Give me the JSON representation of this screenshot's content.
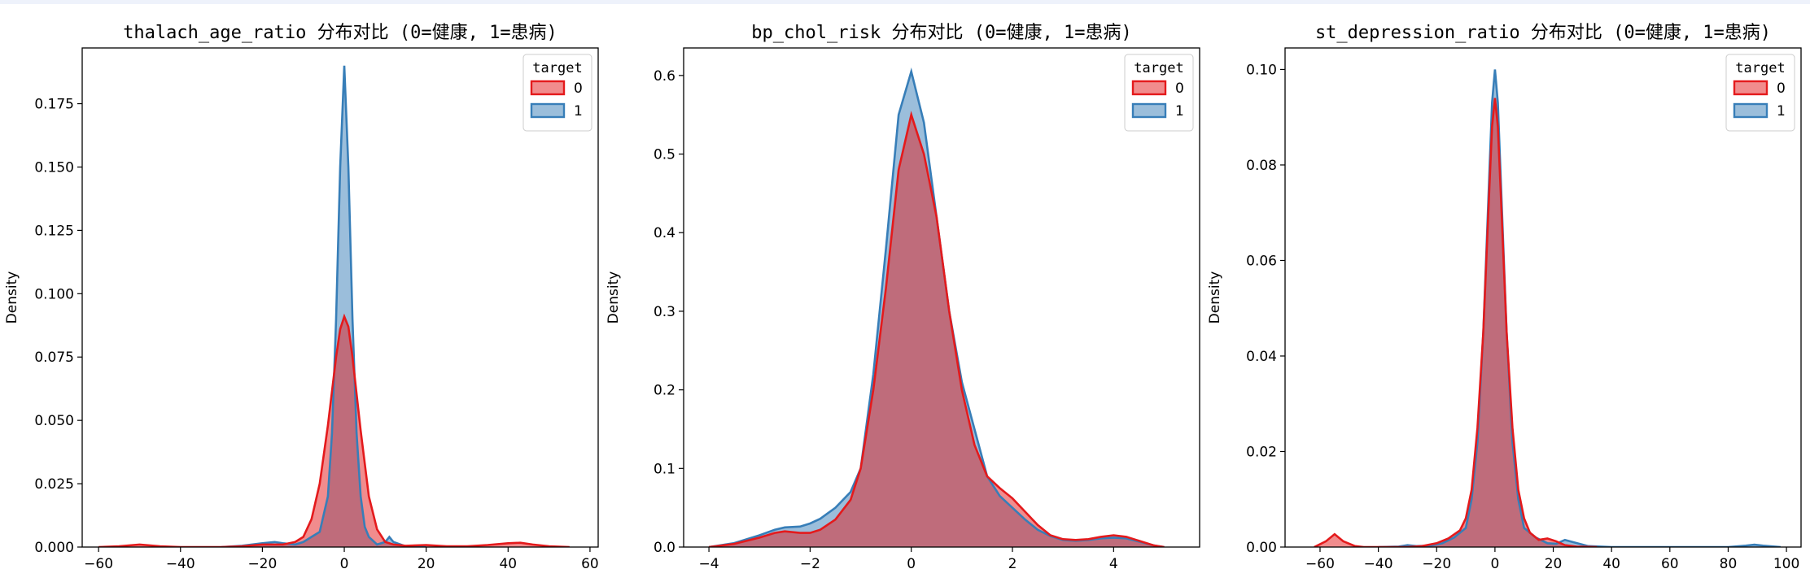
{
  "colors": {
    "class0": "#e41a1c",
    "class1": "#377eb8"
  },
  "chart_data": [
    {
      "type": "area",
      "title": "thalach_age_ratio 分布对比 (0=健康, 1=患病)",
      "xlabel": "",
      "ylabel": "Density",
      "xlim": [
        -64,
        62
      ],
      "ylim": [
        0,
        0.197
      ],
      "xticks": [
        -60,
        -40,
        -20,
        0,
        20,
        40,
        60
      ],
      "xtick_labels": [
        "−60",
        "−40",
        "−20",
        "0",
        "20",
        "40",
        "60"
      ],
      "yticks": [
        0,
        0.025,
        0.05,
        0.075,
        0.1,
        0.125,
        0.15,
        0.175
      ],
      "ytick_labels": [
        "0.000",
        "0.025",
        "0.050",
        "0.075",
        "0.100",
        "0.125",
        "0.150",
        "0.175"
      ],
      "grid": false,
      "legend": {
        "title": "target",
        "position": "top-right",
        "entries": [
          "0",
          "1"
        ]
      },
      "series": [
        {
          "name": "0",
          "color": "#e41a1c",
          "x": [
            -60,
            -55,
            -50,
            -45,
            -40,
            -30,
            -25,
            -20,
            -15,
            -12,
            -10,
            -8,
            -6,
            -4,
            -2,
            -1,
            0,
            1,
            2,
            4,
            6,
            8,
            10,
            12,
            15,
            20,
            25,
            30,
            35,
            40,
            43,
            46,
            50,
            55
          ],
          "y": [
            0,
            0.0003,
            0.001,
            0.0003,
            0,
            0,
            0.0003,
            0.001,
            0.001,
            0.002,
            0.004,
            0.011,
            0.025,
            0.048,
            0.075,
            0.086,
            0.091,
            0.087,
            0.075,
            0.046,
            0.02,
            0.007,
            0.002,
            0.001,
            0.0005,
            0.0008,
            0.0003,
            0.0003,
            0.0008,
            0.0015,
            0.0017,
            0.001,
            0.0003,
            0
          ]
        },
        {
          "name": "1",
          "color": "#377eb8",
          "x": [
            -30,
            -25,
            -20,
            -17,
            -15,
            -12,
            -10,
            -8,
            -6,
            -4,
            -3,
            -2,
            -1,
            0,
            1,
            2,
            3,
            4,
            5,
            6,
            8,
            10,
            11,
            12,
            15,
            20
          ],
          "y": [
            0,
            0.0005,
            0.0015,
            0.002,
            0.0015,
            0.001,
            0.002,
            0.004,
            0.006,
            0.02,
            0.045,
            0.09,
            0.15,
            0.19,
            0.15,
            0.09,
            0.045,
            0.02,
            0.008,
            0.004,
            0.001,
            0.002,
            0.004,
            0.002,
            0.0003,
            0
          ]
        }
      ]
    },
    {
      "type": "area",
      "title": "bp_chol_risk 分布对比 (0=健康, 1=患病)",
      "xlabel": "",
      "ylabel": "Density",
      "xlim": [
        -4.5,
        5.7
      ],
      "ylim": [
        0,
        0.635
      ],
      "xticks": [
        -4,
        -2,
        0,
        2,
        4
      ],
      "xtick_labels": [
        "−4",
        "−2",
        "0",
        "2",
        "4"
      ],
      "yticks": [
        0,
        0.1,
        0.2,
        0.3,
        0.4,
        0.5,
        0.6
      ],
      "ytick_labels": [
        "0.0",
        "0.1",
        "0.2",
        "0.3",
        "0.4",
        "0.5",
        "0.6"
      ],
      "grid": false,
      "legend": {
        "title": "target",
        "position": "top-right",
        "entries": [
          "0",
          "1"
        ]
      },
      "series": [
        {
          "name": "0",
          "color": "#e41a1c",
          "x": [
            -4,
            -3.5,
            -3,
            -2.7,
            -2.5,
            -2.2,
            -2,
            -1.8,
            -1.5,
            -1.2,
            -1,
            -0.75,
            -0.5,
            -0.25,
            0,
            0.25,
            0.5,
            0.75,
            1,
            1.25,
            1.5,
            1.75,
            2,
            2.25,
            2.5,
            2.75,
            3,
            3.25,
            3.5,
            3.75,
            4,
            4.25,
            4.5,
            4.8,
            5
          ],
          "y": [
            0,
            0.004,
            0.012,
            0.018,
            0.02,
            0.018,
            0.018,
            0.022,
            0.035,
            0.06,
            0.1,
            0.2,
            0.33,
            0.48,
            0.55,
            0.5,
            0.42,
            0.3,
            0.2,
            0.13,
            0.09,
            0.075,
            0.062,
            0.045,
            0.028,
            0.015,
            0.01,
            0.009,
            0.01,
            0.013,
            0.015,
            0.013,
            0.008,
            0.002,
            0
          ]
        },
        {
          "name": "1",
          "color": "#377eb8",
          "x": [
            -4,
            -3.5,
            -3,
            -2.7,
            -2.5,
            -2.2,
            -2,
            -1.8,
            -1.5,
            -1.2,
            -1,
            -0.75,
            -0.5,
            -0.25,
            0,
            0.25,
            0.5,
            0.75,
            1,
            1.25,
            1.5,
            1.75,
            2,
            2.25,
            2.5,
            2.75,
            3,
            3.25,
            3.5,
            3.75,
            4,
            4.25,
            4.5,
            4.8,
            5
          ],
          "y": [
            0,
            0.005,
            0.015,
            0.022,
            0.025,
            0.026,
            0.03,
            0.036,
            0.05,
            0.07,
            0.1,
            0.22,
            0.38,
            0.55,
            0.605,
            0.54,
            0.42,
            0.3,
            0.21,
            0.15,
            0.09,
            0.065,
            0.05,
            0.035,
            0.022,
            0.014,
            0.009,
            0.008,
            0.009,
            0.011,
            0.012,
            0.011,
            0.007,
            0.002,
            0
          ]
        }
      ]
    },
    {
      "type": "area",
      "title": "st_depression_ratio 分布对比 (0=健康, 1=患病)",
      "xlabel": "",
      "ylabel": "Density",
      "xlim": [
        -72,
        105
      ],
      "ylim": [
        0,
        0.1045
      ],
      "xticks": [
        -60,
        -40,
        -20,
        0,
        20,
        40,
        60,
        80,
        100
      ],
      "xtick_labels": [
        "−60",
        "−40",
        "−20",
        "0",
        "20",
        "40",
        "60",
        "80",
        "100"
      ],
      "yticks": [
        0,
        0.02,
        0.04,
        0.06,
        0.08,
        0.1
      ],
      "ytick_labels": [
        "0.00",
        "0.02",
        "0.04",
        "0.06",
        "0.08",
        "0.10"
      ],
      "grid": false,
      "legend": {
        "title": "target",
        "position": "top-right",
        "entries": [
          "0",
          "1"
        ]
      },
      "series": [
        {
          "name": "0",
          "color": "#e41a1c",
          "x": [
            -62,
            -58,
            -55,
            -52,
            -48,
            -45,
            -40,
            -30,
            -25,
            -20,
            -16,
            -12,
            -10,
            -8,
            -6,
            -4,
            -2,
            -1,
            0,
            1,
            2,
            4,
            6,
            8,
            10,
            12,
            15,
            18,
            21,
            24,
            28,
            35
          ],
          "y": [
            0,
            0.0012,
            0.0027,
            0.0012,
            0.0002,
            0,
            0,
            0,
            0.0002,
            0.0008,
            0.0018,
            0.0035,
            0.006,
            0.012,
            0.025,
            0.045,
            0.074,
            0.088,
            0.094,
            0.088,
            0.074,
            0.045,
            0.025,
            0.012,
            0.006,
            0.003,
            0.0015,
            0.0018,
            0.0012,
            0.0004,
            0.0001,
            0
          ]
        },
        {
          "name": "1",
          "color": "#377eb8",
          "x": [
            -40,
            -33,
            -30,
            -27,
            -22,
            -18,
            -14,
            -10,
            -8,
            -6,
            -4,
            -2,
            -1,
            0,
            1,
            2,
            4,
            6,
            8,
            10,
            14,
            18,
            21,
            24,
            27,
            32,
            40,
            80,
            86,
            89,
            92,
            98
          ],
          "y": [
            0,
            0.0001,
            0.0004,
            0.0002,
            0.0003,
            0.0008,
            0.002,
            0.004,
            0.01,
            0.022,
            0.045,
            0.077,
            0.093,
            0.1,
            0.093,
            0.077,
            0.045,
            0.022,
            0.01,
            0.004,
            0.002,
            0.0008,
            0.0007,
            0.0015,
            0.001,
            0.0002,
            0,
            0,
            0.0003,
            0.0005,
            0.0003,
            0
          ]
        }
      ]
    }
  ]
}
